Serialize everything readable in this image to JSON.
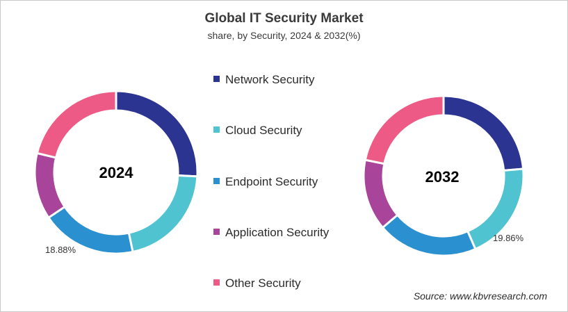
{
  "title": "Global IT Security Market",
  "subtitle": "share, by Security, 2024 & 2032(%)",
  "legend": [
    {
      "label": "Network Security",
      "color": "#2b3591"
    },
    {
      "label": "Cloud Security",
      "color": "#4fc3cf"
    },
    {
      "label": "Endpoint Security",
      "color": "#2b90d0"
    },
    {
      "label": "Application Security",
      "color": "#a8449a"
    },
    {
      "label": "Other Security",
      "color": "#ec5a85"
    }
  ],
  "charts": [
    {
      "year_label": "2024",
      "pct_label": "18.88%"
    },
    {
      "year_label": "2032",
      "pct_label": "19.86%"
    }
  ],
  "source": "Source: www.kbvresearch.com",
  "chart_data": [
    {
      "type": "pie",
      "title": "2024",
      "donut": true,
      "categories": [
        "Network Security",
        "Cloud Security",
        "Endpoint Security",
        "Application Security",
        "Other Security"
      ],
      "values": [
        25.8,
        20.9,
        18.88,
        13.2,
        21.2
      ],
      "annotations": [
        {
          "category": "Endpoint Security",
          "label": "18.88%"
        }
      ],
      "legend_position": "center"
    },
    {
      "type": "pie",
      "title": "2032",
      "donut": true,
      "categories": [
        "Network Security",
        "Cloud Security",
        "Endpoint Security",
        "Application Security",
        "Other Security"
      ],
      "values": [
        23.6,
        19.86,
        20.3,
        14.4,
        21.8
      ],
      "annotations": [
        {
          "category": "Cloud Security",
          "label": "19.86%"
        }
      ],
      "legend_position": "center"
    }
  ]
}
